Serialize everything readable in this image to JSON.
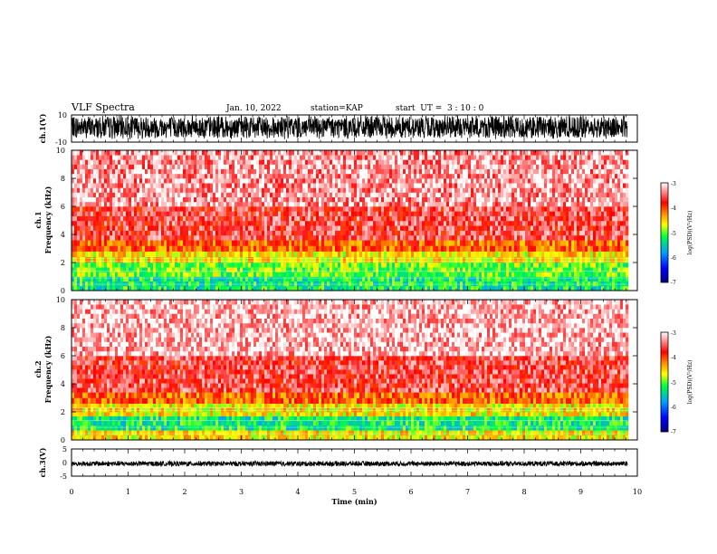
{
  "header": {
    "title": "VLF Spectra",
    "date": "Jan. 10, 2022",
    "station": "station=KAP",
    "start": "start  UT =  3 : 10 : 0"
  },
  "chart_data": [
    {
      "type": "line",
      "name": "ch.1 waveform",
      "ylabel": "ch.1(V)",
      "ylim": [
        -10,
        10
      ],
      "yticks": [
        "10",
        "-10"
      ],
      "xlim": [
        0,
        10
      ],
      "data_end_min": 9.83,
      "band": [
        -7,
        9
      ]
    },
    {
      "type": "heatmap",
      "name": "ch.1 spectrogram",
      "ylabel": "ch.1\nFrequency (kHz)",
      "ylabel_channel": "ch.1",
      "ylabel_freq": "Frequency (kHz)",
      "ylim": [
        0,
        10
      ],
      "yticks": [
        "0",
        "2",
        "4",
        "6",
        "8",
        "10"
      ],
      "xlim": [
        0,
        10
      ],
      "data_end_min": 9.83,
      "bands_khz": [
        {
          "from": 0.0,
          "to": 1.0,
          "level": -5.3
        },
        {
          "from": 1.0,
          "to": 2.0,
          "level": -5.0
        },
        {
          "from": 2.0,
          "to": 2.8,
          "level": -4.6
        },
        {
          "from": 2.8,
          "to": 3.6,
          "level": -4.1
        },
        {
          "from": 3.6,
          "to": 6.0,
          "level": -3.6
        },
        {
          "from": 6.0,
          "to": 10.0,
          "level": -3.3
        }
      ],
      "colorbar": {
        "label": "log(PSD)(V²/Hz)",
        "range": [
          -7,
          -3
        ],
        "ticks": [
          "-3",
          "-4",
          "-5",
          "-6",
          "-7"
        ]
      }
    },
    {
      "type": "heatmap",
      "name": "ch.2 spectrogram",
      "ylabel": "ch.2\nFrequency (kHz)",
      "ylabel_channel": "ch.2",
      "ylabel_freq": "Frequency (kHz)",
      "ylim": [
        0,
        10
      ],
      "yticks": [
        "0",
        "2",
        "4",
        "6",
        "8",
        "10"
      ],
      "xlim": [
        0,
        10
      ],
      "data_end_min": 9.83,
      "bands_khz": [
        {
          "from": 0.0,
          "to": 0.7,
          "level": -4.6
        },
        {
          "from": 0.7,
          "to": 1.7,
          "level": -5.3
        },
        {
          "from": 1.7,
          "to": 2.6,
          "level": -4.6
        },
        {
          "from": 2.6,
          "to": 3.4,
          "level": -4.1
        },
        {
          "from": 3.4,
          "to": 6.0,
          "level": -3.6
        },
        {
          "from": 6.0,
          "to": 10.0,
          "level": -3.2
        }
      ],
      "colorbar": {
        "label": "log(PSD)(V²/Hz)",
        "range": [
          -7,
          -3
        ],
        "ticks": [
          "-3",
          "-4",
          "-5",
          "-6",
          "-7"
        ]
      }
    },
    {
      "type": "line",
      "name": "ch.3 waveform",
      "ylabel": "ch.3(V)",
      "ylim": [
        -5,
        5
      ],
      "yticks": [
        "5",
        "0",
        "-5"
      ],
      "xlim": [
        0,
        10
      ],
      "data_end_min": 9.83,
      "band": [
        -1.3,
        0.5
      ]
    }
  ],
  "xaxis": {
    "label": "Time (min)",
    "ticks": [
      "0",
      "1",
      "2",
      "3",
      "4",
      "5",
      "6",
      "7",
      "8",
      "9",
      "10"
    ]
  },
  "colors": {
    "colormap": [
      "#000080",
      "#0000ff",
      "#00a0ff",
      "#00ff40",
      "#ffff00",
      "#ff8000",
      "#ff0000",
      "#ffffff"
    ]
  }
}
